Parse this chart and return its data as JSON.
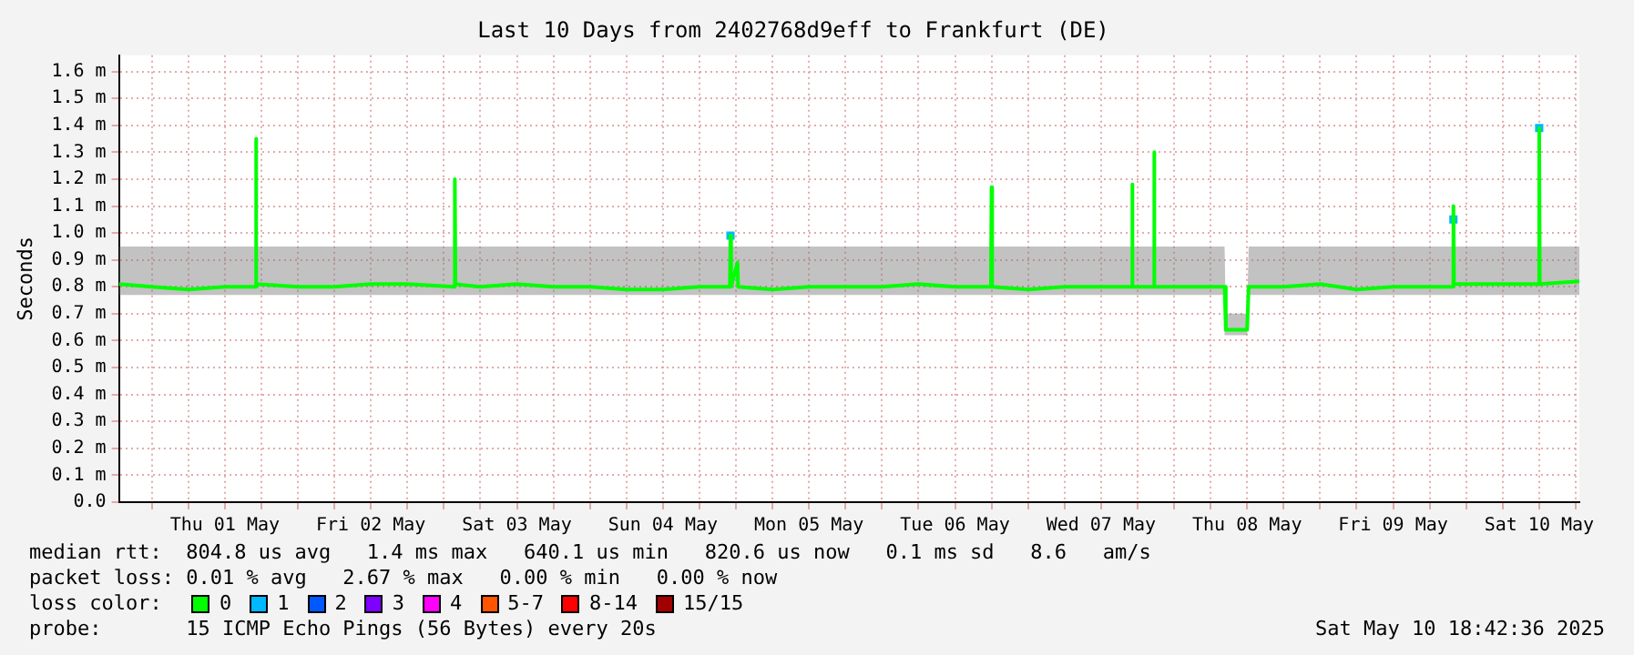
{
  "chart_data": {
    "type": "line",
    "title": "Last 10 Days from 2402768d9eff to Frankfurt (DE)",
    "ylabel": "Seconds",
    "xlim": [
      "2025-04-30T18:36",
      "2025-05-10T18:36"
    ],
    "xticks": [
      {
        "value": "2025-05-01T00:00",
        "label": null
      },
      {
        "value": "2025-05-01T06:00",
        "label": null
      },
      {
        "value": "2025-05-01T12:00",
        "label": "Thu 01 May"
      },
      {
        "value": "2025-05-01T18:00",
        "label": null
      },
      {
        "value": "2025-05-02T00:00",
        "label": null
      },
      {
        "value": "2025-05-02T06:00",
        "label": null
      },
      {
        "value": "2025-05-02T12:00",
        "label": "Fri 02 May"
      },
      {
        "value": "2025-05-02T18:00",
        "label": null
      },
      {
        "value": "2025-05-03T00:00",
        "label": null
      },
      {
        "value": "2025-05-03T06:00",
        "label": null
      },
      {
        "value": "2025-05-03T12:00",
        "label": "Sat 03 May"
      },
      {
        "value": "2025-05-03T18:00",
        "label": null
      },
      {
        "value": "2025-05-04T00:00",
        "label": null
      },
      {
        "value": "2025-05-04T06:00",
        "label": null
      },
      {
        "value": "2025-05-04T12:00",
        "label": "Sun 04 May"
      },
      {
        "value": "2025-05-04T18:00",
        "label": null
      },
      {
        "value": "2025-05-05T00:00",
        "label": null
      },
      {
        "value": "2025-05-05T06:00",
        "label": null
      },
      {
        "value": "2025-05-05T12:00",
        "label": "Mon 05 May"
      },
      {
        "value": "2025-05-05T18:00",
        "label": null
      },
      {
        "value": "2025-05-06T00:00",
        "label": null
      },
      {
        "value": "2025-05-06T06:00",
        "label": null
      },
      {
        "value": "2025-05-06T12:00",
        "label": "Tue 06 May"
      },
      {
        "value": "2025-05-06T18:00",
        "label": null
      },
      {
        "value": "2025-05-07T00:00",
        "label": null
      },
      {
        "value": "2025-05-07T06:00",
        "label": null
      },
      {
        "value": "2025-05-07T12:00",
        "label": "Wed 07 May"
      },
      {
        "value": "2025-05-07T18:00",
        "label": null
      },
      {
        "value": "2025-05-08T00:00",
        "label": null
      },
      {
        "value": "2025-05-08T06:00",
        "label": null
      },
      {
        "value": "2025-05-08T12:00",
        "label": "Thu 08 May"
      },
      {
        "value": "2025-05-08T18:00",
        "label": null
      },
      {
        "value": "2025-05-09T00:00",
        "label": null
      },
      {
        "value": "2025-05-09T06:00",
        "label": null
      },
      {
        "value": "2025-05-09T12:00",
        "label": "Fri 09 May"
      },
      {
        "value": "2025-05-09T18:00",
        "label": null
      },
      {
        "value": "2025-05-10T00:00",
        "label": null
      },
      {
        "value": "2025-05-10T06:00",
        "label": null
      },
      {
        "value": "2025-05-10T12:00",
        "label": "Sat 10 May"
      },
      {
        "value": "2025-05-10T18:00",
        "label": null
      }
    ],
    "ylim": [
      0,
      1.66
    ],
    "yticks": [
      {
        "value": 0,
        "label": "0.0"
      },
      {
        "value": 0.1,
        "label": "0.1 m"
      },
      {
        "value": 0.2,
        "label": "0.2 m"
      },
      {
        "value": 0.3,
        "label": "0.3 m"
      },
      {
        "value": 0.4,
        "label": "0.4 m"
      },
      {
        "value": 0.5,
        "label": "0.5 m"
      },
      {
        "value": 0.6,
        "label": "0.6 m"
      },
      {
        "value": 0.7,
        "label": "0.7 m"
      },
      {
        "value": 0.8,
        "label": "0.8 m"
      },
      {
        "value": 0.9,
        "label": "0.9 m"
      },
      {
        "value": 1.0,
        "label": "1.0 m"
      },
      {
        "value": 1.1,
        "label": "1.1 m"
      },
      {
        "value": 1.2,
        "label": "1.2 m"
      },
      {
        "value": 1.3,
        "label": "1.3 m"
      },
      {
        "value": 1.4,
        "label": "1.4 m"
      },
      {
        "value": 1.5,
        "label": "1.5 m"
      },
      {
        "value": 1.6,
        "label": "1.6 m"
      }
    ],
    "grid": true,
    "legend": "bottom",
    "legend_title": "loss color:",
    "marker": "none",
    "series": [
      {
        "name": "0",
        "color": "#00ff00",
        "x": [
          "2025-04-30T18:36",
          "2025-05-01T00:00",
          "2025-05-01T06:00",
          "2025-05-01T12:00",
          "2025-05-01T17:00",
          "2025-05-01T17:06",
          "2025-05-01T17:12",
          "2025-05-02T00:00",
          "2025-05-02T06:00",
          "2025-05-02T12:00",
          "2025-05-02T18:00",
          "2025-05-03T01:42",
          "2025-05-03T01:48",
          "2025-05-03T01:54",
          "2025-05-03T06:00",
          "2025-05-03T12:00",
          "2025-05-03T18:00",
          "2025-05-04T00:00",
          "2025-05-04T06:00",
          "2025-05-04T12:00",
          "2025-05-04T18:00",
          "2025-05-04T23:00",
          "2025-05-04T23:06",
          "2025-05-04T23:12",
          "2025-05-05T00:15",
          "2025-05-05T00:21",
          "2025-05-05T06:00",
          "2025-05-05T12:00",
          "2025-05-05T18:00",
          "2025-05-06T00:00",
          "2025-05-06T06:00",
          "2025-05-06T12:00",
          "2025-05-06T17:54",
          "2025-05-06T18:00",
          "2025-05-06T18:06",
          "2025-05-07T00:00",
          "2025-05-07T06:00",
          "2025-05-07T12:00",
          "2025-05-07T17:00",
          "2025-05-07T17:06",
          "2025-05-07T17:12",
          "2025-05-07T20:36",
          "2025-05-07T20:42",
          "2025-05-07T20:48",
          "2025-05-08T06:00",
          "2025-05-08T08:18",
          "2025-05-08T08:30",
          "2025-05-08T12:00",
          "2025-05-08T12:15",
          "2025-05-08T18:00",
          "2025-05-09T00:00",
          "2025-05-09T06:00",
          "2025-05-09T12:00",
          "2025-05-09T18:00",
          "2025-05-09T21:48",
          "2025-05-09T21:54",
          "2025-05-09T22:00",
          "2025-05-10T06:00",
          "2025-05-10T11:54",
          "2025-05-10T12:00",
          "2025-05-10T12:06",
          "2025-05-10T18:36"
        ],
        "values": [
          0.81,
          0.8,
          0.79,
          0.8,
          0.8,
          1.35,
          0.81,
          0.8,
          0.8,
          0.81,
          0.81,
          0.8,
          1.2,
          0.81,
          0.8,
          0.81,
          0.8,
          0.8,
          0.79,
          0.79,
          0.8,
          0.8,
          0.99,
          0.8,
          0.89,
          0.8,
          0.79,
          0.8,
          0.8,
          0.8,
          0.81,
          0.8,
          0.8,
          1.17,
          0.8,
          0.79,
          0.8,
          0.8,
          0.8,
          1.18,
          0.8,
          0.8,
          1.3,
          0.8,
          0.8,
          0.8,
          0.64,
          0.64,
          0.8,
          0.8,
          0.81,
          0.79,
          0.8,
          0.8,
          0.8,
          1.1,
          0.81,
          0.81,
          0.81,
          1.39,
          0.81,
          0.82
        ],
        "lower": [
          0.77,
          0.77,
          0.77,
          0.77,
          0.77,
          0.77,
          0.77,
          0.77,
          0.77,
          0.77,
          0.77,
          0.77,
          0.77,
          0.77,
          0.77,
          0.77,
          0.77,
          0.77,
          0.77,
          0.77,
          0.77,
          0.77,
          0.77,
          0.77,
          0.77,
          0.77,
          0.77,
          0.77,
          0.77,
          0.77,
          0.77,
          0.77,
          0.77,
          0.77,
          0.77,
          0.77,
          0.77,
          0.77,
          0.77,
          0.77,
          0.77,
          0.77,
          0.77,
          0.77,
          0.77,
          0.77,
          0.62,
          0.62,
          0.77,
          0.77,
          0.77,
          0.77,
          0.77,
          0.77,
          0.77,
          0.77,
          0.77,
          0.77,
          0.77,
          0.77,
          0.77,
          0.77
        ],
        "upper": [
          0.95,
          0.95,
          0.95,
          0.95,
          0.95,
          1.35,
          0.95,
          0.95,
          0.95,
          0.95,
          0.95,
          0.95,
          1.2,
          0.95,
          0.95,
          0.95,
          0.95,
          0.95,
          0.95,
          0.95,
          0.95,
          0.95,
          0.99,
          0.95,
          0.95,
          0.95,
          0.95,
          0.95,
          0.95,
          0.95,
          0.95,
          0.95,
          0.95,
          1.17,
          0.95,
          0.95,
          0.95,
          0.95,
          0.95,
          1.18,
          0.95,
          0.95,
          1.3,
          0.95,
          0.95,
          0.95,
          0.7,
          0.7,
          0.95,
          0.95,
          0.95,
          0.95,
          0.95,
          0.95,
          0.95,
          1.1,
          0.95,
          0.95,
          0.95,
          1.39,
          0.95,
          0.95
        ]
      },
      {
        "name": "1",
        "color": "#00b8ff",
        "type": "scatter",
        "marker": "square",
        "x": [
          "2025-05-04T23:06",
          "2025-05-09T21:54",
          "2025-05-10T12:00"
        ],
        "values": [
          0.99,
          1.05,
          1.39
        ]
      },
      {
        "name": "2",
        "color": "#0059ff",
        "type": "scatter",
        "marker": "square"
      },
      {
        "name": "3",
        "color": "#7e00ff",
        "type": "scatter",
        "marker": "square"
      },
      {
        "name": "4",
        "color": "#ff00ff",
        "type": "scatter",
        "marker": "square"
      },
      {
        "name": "5-7",
        "color": "#ff5500",
        "type": "scatter",
        "marker": "square"
      },
      {
        "name": "8-14",
        "color": "#ff0000",
        "type": "scatter",
        "marker": "square"
      },
      {
        "name": "15/15",
        "color": "#a10000",
        "type": "scatter",
        "marker": "square"
      }
    ],
    "annotations": [
      "median rtt:  804.8 us avg   1.4 ms max   640.1 us min   820.6 us now   0.1 ms sd   8.6   am/s",
      "packet loss: 0.01 % avg   2.67 % max   0.00 % min   0.00 % now",
      "probe:       15 ICMP Echo Pings (56 Bytes) every 20s",
      "Sat May 10 18:42:36 2025"
    ]
  }
}
